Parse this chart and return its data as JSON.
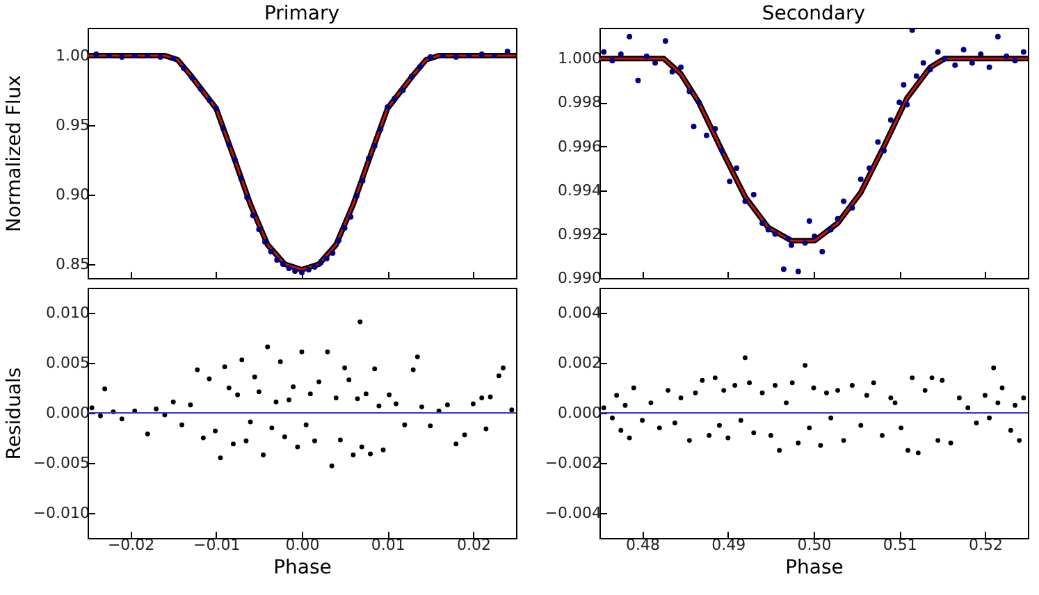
{
  "chart_data": [
    {
      "type": "scatter",
      "title": "Primary",
      "ylabel": "Normalized Flux",
      "xlim": [
        -0.025,
        0.025
      ],
      "xticks": [
        -0.02,
        -0.01,
        0.0,
        0.01,
        0.02
      ],
      "ylim": [
        0.84,
        1.02
      ],
      "yticks": [
        {
          "value": 0.85,
          "label": "0.85"
        },
        {
          "value": 0.9,
          "label": "0.90"
        },
        {
          "value": 0.95,
          "label": "0.95"
        },
        {
          "value": 1.0,
          "label": "1.00"
        }
      ],
      "tick_labels": "y",
      "series": [
        {
          "type": "line",
          "color": "#000000",
          "x": [
            -0.025,
            -0.016,
            -0.0145,
            -0.013,
            -0.0115,
            -0.01,
            -0.008,
            -0.006,
            -0.004,
            -0.002,
            0,
            0.002,
            0.004,
            0.006,
            0.008,
            0.01,
            0.0115,
            0.013,
            0.0145,
            0.016,
            0.025
          ],
          "values": [
            1.0,
            1.0,
            0.997,
            0.986,
            0.974,
            0.962,
            0.928,
            0.893,
            0.864,
            0.85,
            0.846,
            0.85,
            0.864,
            0.893,
            0.928,
            0.962,
            0.974,
            0.986,
            0.997,
            1.0,
            1.0
          ]
        },
        {
          "type": "line",
          "color": "#cc1111",
          "x": [
            -0.025,
            -0.016,
            -0.0145,
            -0.013,
            -0.0115,
            -0.01,
            -0.008,
            -0.006,
            -0.004,
            -0.002,
            0,
            0.002,
            0.004,
            0.006,
            0.008,
            0.01,
            0.0115,
            0.013,
            0.0145,
            0.016,
            0.025
          ],
          "values": [
            1.0,
            1.0,
            0.997,
            0.986,
            0.974,
            0.962,
            0.928,
            0.893,
            0.864,
            0.85,
            0.846,
            0.85,
            0.864,
            0.893,
            0.928,
            0.962,
            0.974,
            0.986,
            0.997,
            1.0,
            1.0
          ]
        },
        {
          "type": "scatter",
          "color": "#00008b",
          "x": [
            -0.024,
            -0.0225,
            -0.021,
            -0.0195,
            -0.018,
            -0.0165,
            -0.015,
            -0.0138,
            -0.0128,
            -0.0118,
            -0.0108,
            -0.01,
            -0.0092,
            -0.0085,
            -0.0078,
            -0.0071,
            -0.0064,
            -0.0057,
            -0.005,
            -0.0043,
            -0.0036,
            -0.0029,
            -0.0022,
            -0.0015,
            -0.0008,
            0,
            0.0008,
            0.0015,
            0.0022,
            0.0029,
            0.0036,
            0.0043,
            0.005,
            0.0057,
            0.0064,
            0.0071,
            0.0078,
            0.0085,
            0.0092,
            0.01,
            0.0108,
            0.0118,
            0.0128,
            0.0138,
            0.015,
            0.0165,
            0.018,
            0.0195,
            0.021,
            0.0225,
            0.024
          ],
          "values": [
            1.001,
            1.0,
            0.999,
            1.0,
            1.0,
            0.999,
            0.998,
            0.991,
            0.984,
            0.976,
            0.968,
            0.962,
            0.948,
            0.936,
            0.925,
            0.912,
            0.898,
            0.885,
            0.875,
            0.866,
            0.859,
            0.853,
            0.85,
            0.847,
            0.845,
            0.844,
            0.846,
            0.848,
            0.851,
            0.854,
            0.858,
            0.867,
            0.876,
            0.884,
            0.899,
            0.91,
            0.926,
            0.935,
            0.947,
            0.963,
            0.969,
            0.975,
            0.985,
            0.992,
            0.999,
            1.0,
            0.999,
            1.0,
            1.001,
            1.0,
            1.003
          ]
        }
      ]
    },
    {
      "type": "scatter",
      "title": "Secondary",
      "xlim": [
        0.475,
        0.525
      ],
      "xticks": [
        0.48,
        0.49,
        0.5,
        0.51,
        0.52
      ],
      "ylim": [
        0.99,
        1.0014
      ],
      "yticks": [
        {
          "value": 0.99,
          "label": "0.990"
        },
        {
          "value": 0.992,
          "label": "0.992"
        },
        {
          "value": 0.994,
          "label": "0.994"
        },
        {
          "value": 0.996,
          "label": "0.996"
        },
        {
          "value": 0.998,
          "label": "0.998"
        },
        {
          "value": 1.0,
          "label": "1.000"
        }
      ],
      "tick_labels": "y",
      "series": [
        {
          "type": "line",
          "color": "#000000",
          "x": [
            0.475,
            0.4825,
            0.4845,
            0.4866,
            0.4893,
            0.492,
            0.4947,
            0.4974,
            0.5001,
            0.5028,
            0.5055,
            0.5082,
            0.5109,
            0.5136,
            0.5153,
            0.525
          ],
          "values": [
            1.0,
            1.0,
            0.9993,
            0.998,
            0.9958,
            0.9937,
            0.9923,
            0.9917,
            0.9917,
            0.9925,
            0.9939,
            0.996,
            0.9982,
            0.9996,
            1.0,
            1.0
          ]
        },
        {
          "type": "line",
          "color": "#cc1111",
          "x": [
            0.475,
            0.4825,
            0.4845,
            0.4866,
            0.4893,
            0.492,
            0.4947,
            0.4974,
            0.5001,
            0.5028,
            0.5055,
            0.5082,
            0.5109,
            0.5136,
            0.5153,
            0.525
          ],
          "values": [
            1.0,
            1.0,
            0.9993,
            0.998,
            0.9958,
            0.9937,
            0.9923,
            0.9917,
            0.9917,
            0.9925,
            0.9939,
            0.996,
            0.9982,
            0.9996,
            1.0,
            1.0
          ]
        },
        {
          "type": "scatter",
          "color": "#00008b",
          "x": [
            0.4755,
            0.4765,
            0.4775,
            0.4785,
            0.4795,
            0.4805,
            0.4815,
            0.4827,
            0.4835,
            0.4845,
            0.4855,
            0.486,
            0.4866,
            0.4875,
            0.4885,
            0.4893,
            0.4902,
            0.491,
            0.492,
            0.493,
            0.494,
            0.4947,
            0.4955,
            0.4965,
            0.497,
            0.4974,
            0.4982,
            0.499,
            0.4995,
            0.5001,
            0.501,
            0.502,
            0.5028,
            0.5035,
            0.5045,
            0.5055,
            0.5065,
            0.5075,
            0.5082,
            0.509,
            0.51,
            0.5105,
            0.5109,
            0.5115,
            0.512,
            0.5128,
            0.5136,
            0.5145,
            0.5153,
            0.5165,
            0.5175,
            0.5185,
            0.5195,
            0.5205,
            0.5215,
            0.5225,
            0.5235,
            0.5245
          ],
          "values": [
            1.0003,
            0.9999,
            1.0002,
            1.001,
            0.999,
            1.0001,
            0.9998,
            1.0008,
            0.9994,
            0.9996,
            0.9985,
            0.9969,
            0.998,
            0.9965,
            0.9968,
            0.9958,
            0.9944,
            0.995,
            0.9935,
            0.9938,
            0.9925,
            0.9922,
            0.992,
            0.9904,
            0.9918,
            0.9915,
            0.9903,
            0.9916,
            0.9926,
            0.9919,
            0.9912,
            0.9922,
            0.9927,
            0.9935,
            0.9932,
            0.9945,
            0.995,
            0.9962,
            0.9958,
            0.9972,
            0.998,
            0.9988,
            0.9979,
            1.0013,
            0.9992,
            0.9998,
            0.9995,
            1.0003,
            1.0,
            0.9997,
            1.0004,
            0.9998,
            1.0002,
            0.9996,
            1.001,
            1.0001,
            0.9999,
            1.0003
          ]
        }
      ]
    },
    {
      "type": "scatter",
      "xlabel": "Phase",
      "ylabel": "Residuals",
      "xlim": [
        -0.025,
        0.025
      ],
      "xticks": [
        {
          "value": -0.02,
          "label": "−0.02"
        },
        {
          "value": -0.01,
          "label": "−0.01"
        },
        {
          "value": 0.0,
          "label": "0.00"
        },
        {
          "value": 0.01,
          "label": "0.01"
        },
        {
          "value": 0.02,
          "label": "0.02"
        }
      ],
      "ylim": [
        -0.0125,
        0.0125
      ],
      "yticks": [
        {
          "value": -0.01,
          "label": "−0.010"
        },
        {
          "value": -0.005,
          "label": "−0.005"
        },
        {
          "value": 0.0,
          "label": "0.000"
        },
        {
          "value": 0.005,
          "label": "0.005"
        },
        {
          "value": 0.01,
          "label": "0.010"
        }
      ],
      "series": [
        {
          "type": "scatter",
          "color": "#000000",
          "x": [
            -0.0245,
            -0.0235,
            -0.023,
            -0.022,
            -0.021,
            -0.0195,
            -0.018,
            -0.017,
            -0.016,
            -0.015,
            -0.014,
            -0.013,
            -0.0122,
            -0.0115,
            -0.0108,
            -0.0101,
            -0.0095,
            -0.009,
            -0.0085,
            -0.008,
            -0.0075,
            -0.007,
            -0.0065,
            -0.006,
            -0.0055,
            -0.005,
            -0.0045,
            -0.004,
            -0.0035,
            -0.003,
            -0.0025,
            -0.002,
            -0.0015,
            -0.001,
            -0.0005,
            0,
            0.0005,
            0.001,
            0.0015,
            0.002,
            0.003,
            0.0035,
            0.004,
            0.0045,
            0.005,
            0.0055,
            0.006,
            0.0065,
            0.0068,
            0.007,
            0.0075,
            0.008,
            0.0085,
            0.009,
            0.0095,
            0.0102,
            0.011,
            0.012,
            0.013,
            0.0135,
            0.014,
            0.015,
            0.016,
            0.017,
            0.018,
            0.019,
            0.02,
            0.021,
            0.0215,
            0.022,
            0.023,
            0.0235,
            0.0245
          ],
          "values": [
            0.0005,
            -0.0003,
            0.0024,
            0.0001,
            -0.0006,
            0.0002,
            -0.0021,
            0.0004,
            -0.0002,
            0.0011,
            -0.0012,
            0.0008,
            0.0043,
            -0.0025,
            0.0034,
            -0.0018,
            -0.0045,
            0.0046,
            0.0025,
            -0.0031,
            0.0018,
            0.0053,
            -0.0028,
            -0.0009,
            0.0036,
            0.0021,
            -0.0042,
            0.0066,
            -0.0015,
            0.0011,
            0.0051,
            -0.0024,
            0.0013,
            0.0026,
            -0.0034,
            0.0061,
            -0.0012,
            0.0019,
            -0.0028,
            0.0031,
            0.0061,
            -0.0053,
            0.0015,
            -0.0027,
            0.0045,
            0.0033,
            -0.0042,
            0.0014,
            0.0091,
            -0.0034,
            0.0019,
            -0.0041,
            0.0044,
            0.0007,
            -0.0037,
            0.0018,
            0.0009,
            -0.0012,
            0.0043,
            0.0056,
            0.0006,
            -0.0013,
            0.0002,
            0.0008,
            -0.0031,
            -0.0022,
            0.0009,
            0.0015,
            -0.0016,
            0.0016,
            0.0037,
            0.0045,
            0.0003
          ]
        },
        {
          "type": "line",
          "color": "#3333cc",
          "x": [
            -0.025,
            0.025
          ],
          "values": [
            0.0,
            0.0
          ]
        }
      ]
    },
    {
      "type": "scatter",
      "xlabel": "Phase",
      "xlim": [
        0.475,
        0.525
      ],
      "xticks": [
        {
          "value": 0.48,
          "label": "0.48"
        },
        {
          "value": 0.49,
          "label": "0.49"
        },
        {
          "value": 0.5,
          "label": "0.50"
        },
        {
          "value": 0.51,
          "label": "0.51"
        },
        {
          "value": 0.52,
          "label": "0.52"
        }
      ],
      "ylim": [
        -0.005,
        0.005
      ],
      "yticks": [
        {
          "value": -0.004,
          "label": "−0.004"
        },
        {
          "value": -0.002,
          "label": "−0.002"
        },
        {
          "value": 0.0,
          "label": "0.000"
        },
        {
          "value": 0.002,
          "label": "0.002"
        },
        {
          "value": 0.004,
          "label": "0.004"
        }
      ],
      "series": [
        {
          "type": "scatter",
          "color": "#000000",
          "x": [
            0.4755,
            0.4765,
            0.477,
            0.4775,
            0.478,
            0.4785,
            0.479,
            0.48,
            0.481,
            0.482,
            0.483,
            0.4838,
            0.4845,
            0.4855,
            0.4862,
            0.487,
            0.4878,
            0.4885,
            0.489,
            0.4895,
            0.49,
            0.4908,
            0.4915,
            0.492,
            0.4925,
            0.493,
            0.494,
            0.495,
            0.4955,
            0.496,
            0.4968,
            0.4975,
            0.4982,
            0.499,
            0.4995,
            0.5,
            0.5008,
            0.5015,
            0.502,
            0.5028,
            0.5035,
            0.5045,
            0.5055,
            0.5062,
            0.507,
            0.508,
            0.509,
            0.5095,
            0.5102,
            0.511,
            0.5115,
            0.5122,
            0.513,
            0.5138,
            0.5145,
            0.515,
            0.516,
            0.517,
            0.518,
            0.519,
            0.52,
            0.5205,
            0.521,
            0.5215,
            0.522,
            0.523,
            0.5235,
            0.524,
            0.5245
          ],
          "values": [
            0.0002,
            -0.0002,
            0.0007,
            -0.0007,
            0.0003,
            -0.001,
            0.001,
            -0.0003,
            0.0004,
            -0.0006,
            0.0009,
            -0.0004,
            0.0006,
            -0.0011,
            0.0008,
            0.0013,
            -0.0009,
            0.0014,
            -0.0005,
            0.0009,
            -0.001,
            0.0011,
            -0.0003,
            0.0022,
            0.0012,
            -0.0008,
            0.0008,
            -0.0009,
            0.0011,
            -0.0015,
            0.0004,
            0.0012,
            -0.0012,
            0.0019,
            -0.0006,
            0.001,
            -0.0013,
            0.0008,
            -0.0002,
            0.0009,
            -0.0011,
            0.0011,
            -0.0005,
            0.0007,
            0.0012,
            -0.0009,
            0.0006,
            0.0004,
            -0.0006,
            -0.0015,
            0.0014,
            -0.0016,
            0.0009,
            0.0014,
            -0.0011,
            0.0013,
            -0.0012,
            0.0006,
            0.0002,
            -0.0004,
            0.0007,
            -0.0002,
            0.0018,
            0.0004,
            0.001,
            -0.0007,
            0.0003,
            -0.0011,
            0.0006
          ]
        },
        {
          "type": "line",
          "color": "#3333cc",
          "x": [
            0.475,
            0.525
          ],
          "values": [
            0.0,
            0.0
          ]
        }
      ]
    }
  ]
}
